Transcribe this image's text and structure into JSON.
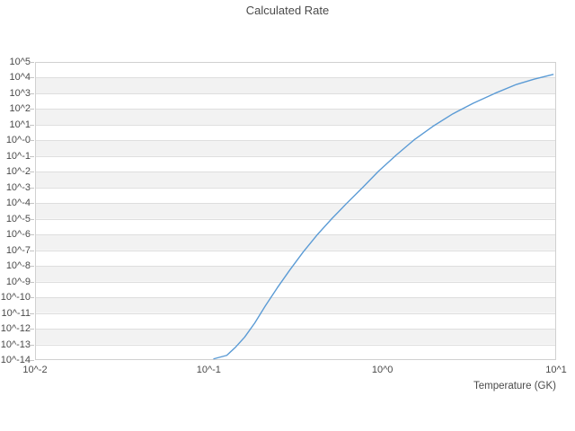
{
  "title": "Calculated Rate",
  "colors": {
    "line": "#5b9bd5",
    "band": "#f2f2f2",
    "grid": "#dedede",
    "border": "#d0d0d0",
    "text": "#4a4a4a",
    "tick_mark": "#c4c4c4",
    "background": "#ffffff"
  },
  "chart_data": {
    "type": "line",
    "title": "Calculated Rate",
    "xlabel": "Temperature (GK)",
    "ylabel": "",
    "x_scale": "log",
    "y_scale": "log",
    "xlim": [
      0.01,
      10
    ],
    "ylim": [
      1e-14,
      100000.0
    ],
    "x_tick_labels": [
      "10^-2",
      "10^-1",
      "10^0",
      "10^1"
    ],
    "x_tick_exponents": [
      -2,
      -1,
      0,
      1
    ],
    "y_tick_labels": [
      "10^5",
      "10^4",
      "10^3",
      "10^2",
      "10^1",
      "10^-0",
      "10^-1",
      "10^-2",
      "10^-3",
      "10^-4",
      "10^-5",
      "10^-6",
      "10^-7",
      "10^-8",
      "10^-9",
      "10^-10",
      "10^-11",
      "10^-12",
      "10^-13",
      "10^-14"
    ],
    "y_tick_exponents": [
      5,
      4,
      3,
      2,
      1,
      0,
      -1,
      -2,
      -3,
      -4,
      -5,
      -6,
      -7,
      -8,
      -9,
      -10,
      -11,
      -12,
      -13,
      -14
    ],
    "grid": "horizontal-decade-lines",
    "background_bands": "alternating-white-gray-per-decade",
    "legend": null,
    "series": [
      {
        "name": "calculated-rate",
        "x_temperature_gk": [
          0.107,
          0.127,
          0.143,
          0.161,
          0.184,
          0.212,
          0.248,
          0.293,
          0.35,
          0.42,
          0.51,
          0.62,
          0.77,
          0.95,
          1.2,
          1.52,
          1.95,
          2.54,
          3.33,
          4.44,
          5.91,
          7.5,
          9.6
        ],
        "y_rate": [
          1.2e-14,
          2e-14,
          6.8e-14,
          2.9e-13,
          2.3e-12,
          2.9e-11,
          4e-10,
          5.5e-09,
          7.8e-08,
          9.3e-07,
          1e-05,
          9.3e-05,
          0.001,
          0.011,
          0.115,
          1.07,
          7.8,
          49,
          234,
          1000,
          3700,
          8100,
          16000
        ]
      }
    ]
  }
}
